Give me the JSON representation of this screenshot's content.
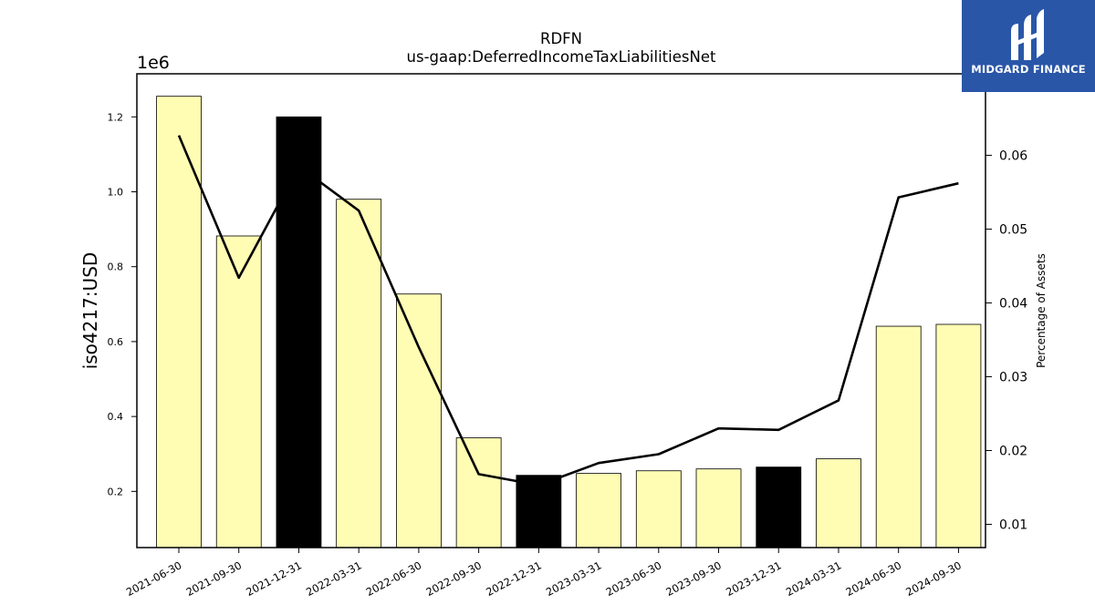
{
  "chart_data": {
    "type": "bar",
    "title": "RDFN",
    "subtitle": "us-gaap:DeferredIncomeTaxLiabilitiesNet",
    "ylabel": "iso4217:USD",
    "y_multiplier_label": "1e6",
    "y2label": "Percentage of Assets",
    "categories": [
      "2021-06-30",
      "2021-09-30",
      "2021-12-31",
      "2022-03-31",
      "2022-06-30",
      "2022-09-30",
      "2022-12-31",
      "2023-03-31",
      "2023-06-30",
      "2023-09-30",
      "2023-12-31",
      "2024-03-31",
      "2024-06-30",
      "2024-09-30"
    ],
    "series": [
      {
        "values": [
          1255000,
          882000,
          1200000,
          980000,
          727000,
          343000,
          243000,
          248000,
          255000,
          260000,
          265000,
          287000,
          641000,
          646000
        ],
        "colors": [
          "#fffdb4",
          "#fffdb4",
          "#000000",
          "#fffdb4",
          "#fffdb4",
          "#fffdb4",
          "#000000",
          "#fffdb4",
          "#fffdb4",
          "#fffdb4",
          "#000000",
          "#fffdb4",
          "#fffdb4",
          "#fffdb4"
        ]
      },
      {
        "axis": "right",
        "type": "line",
        "values": [
          0.0627,
          0.0434,
          0.0585,
          0.0525,
          0.034,
          0.0168,
          0.0153,
          0.0183,
          0.0195,
          0.023,
          0.0228,
          0.0268,
          0.0543,
          0.0562
        ]
      }
    ],
    "ylim": [
      50000,
      1315000
    ],
    "y2lim": [
      0.00685,
      0.07104
    ],
    "yticks": [
      {
        "value": 200000,
        "label": "0.2"
      },
      {
        "value": 400000,
        "label": "0.4"
      },
      {
        "value": 600000,
        "label": "0.6"
      },
      {
        "value": 800000,
        "label": "0.8"
      },
      {
        "value": 1000000,
        "label": "1.0"
      },
      {
        "value": 1200000,
        "label": "1.2"
      }
    ],
    "y2ticks": [
      {
        "value": 0.01,
        "label": "0.01"
      },
      {
        "value": 0.02,
        "label": "0.02"
      },
      {
        "value": 0.03,
        "label": "0.03"
      },
      {
        "value": 0.04,
        "label": "0.04"
      },
      {
        "value": 0.05,
        "label": "0.05"
      },
      {
        "value": 0.06,
        "label": "0.06"
      }
    ],
    "grid": false,
    "legend": "none"
  },
  "logo": {
    "text": "MIDGARD FINANCE",
    "color": "#2a56a8"
  }
}
